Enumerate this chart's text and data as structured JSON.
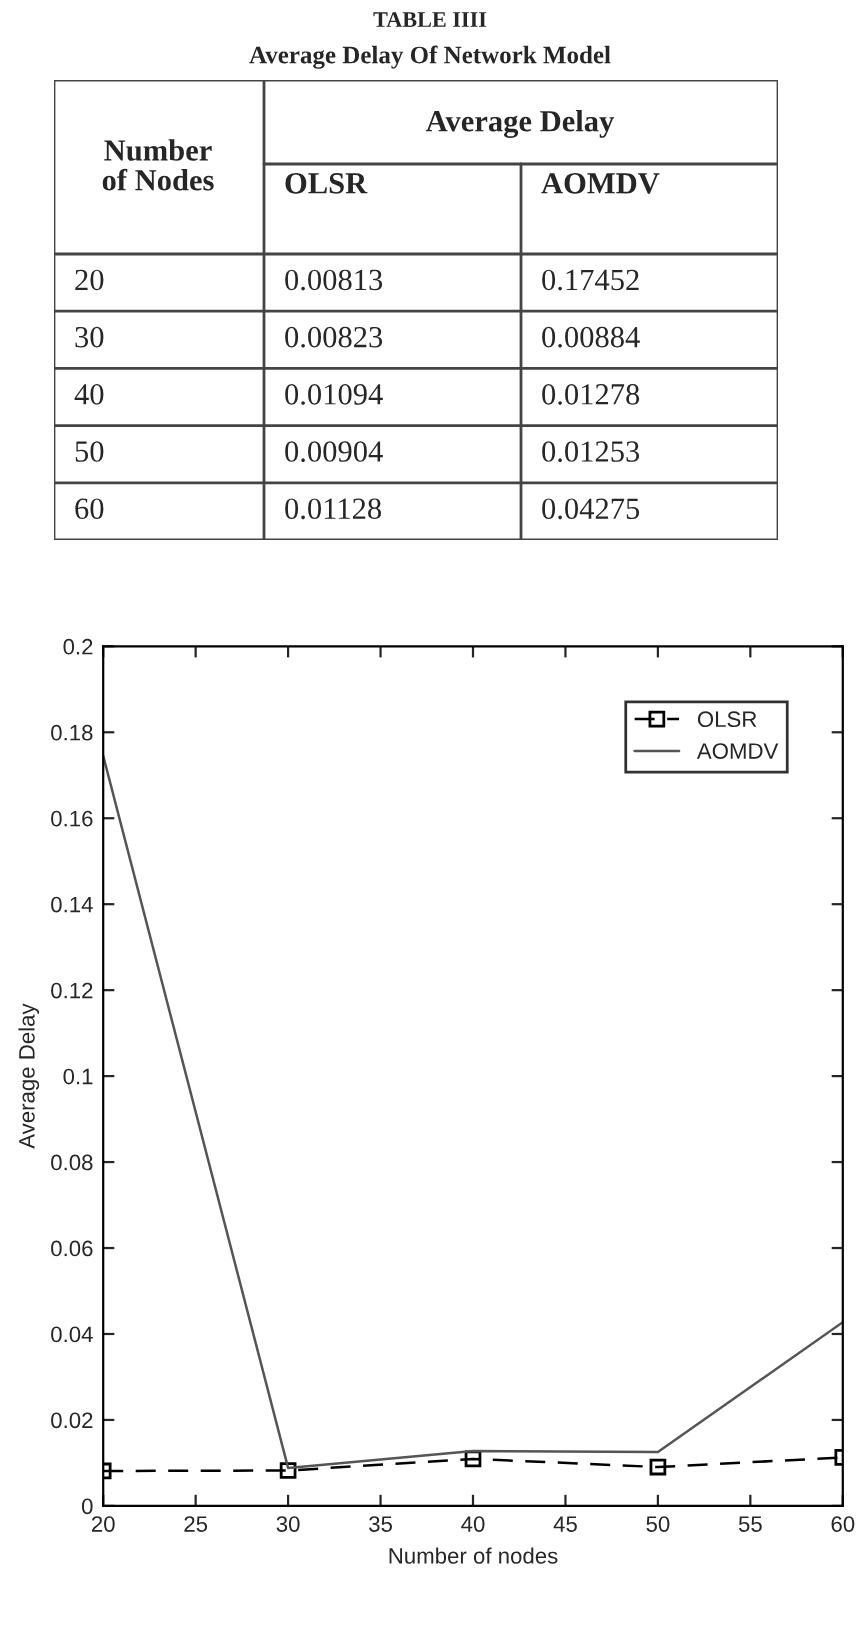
{
  "chart_data": {
    "type": "line",
    "title": "TABLE IIII",
    "subtitle": "Average Delay Of Network Model",
    "xlabel": "Number of nodes",
    "ylabel": "Average Delay",
    "annotations": [
      "Number of Nodes",
      "Average Delay",
      "20",
      "0.00813",
      "0.17452",
      "30",
      "0.00823",
      "0.00884",
      "40",
      "0.01094",
      "0.01278",
      "50",
      "0.00904",
      "0.01253",
      "60",
      "0.01128",
      "0.04275"
    ],
    "x": [
      20,
      30,
      40,
      50,
      60
    ],
    "series": [
      {
        "name": "OLSR",
        "color": "#000000",
        "line_style": "dashed",
        "marker": "square",
        "values": [
          0.00813,
          0.00823,
          0.01094,
          0.00904,
          0.01128
        ]
      },
      {
        "name": "AOMDV",
        "color": "#555555",
        "line_style": "solid",
        "marker": "none",
        "values": [
          0.17452,
          0.00884,
          0.01278,
          0.01253,
          0.04275
        ]
      }
    ],
    "xlim": [
      20,
      60
    ],
    "xticks": [
      20,
      25,
      30,
      35,
      40,
      45,
      50,
      55,
      60
    ],
    "ylim": [
      0,
      0.2
    ],
    "yticks": [
      0,
      0.02,
      0.04,
      0.06,
      0.08,
      0.1,
      0.12,
      0.14,
      0.16,
      0.18,
      0.2
    ],
    "grid": false,
    "legend": "top right"
  }
}
